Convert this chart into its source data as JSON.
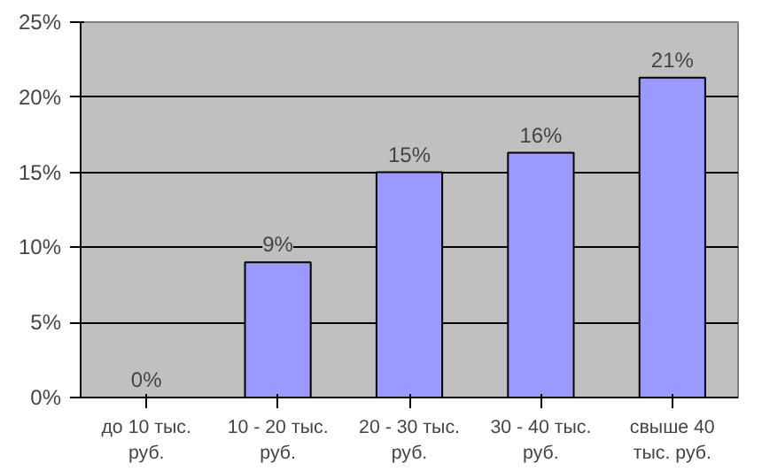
{
  "chart_data": {
    "type": "bar",
    "categories": [
      "до 10 тыс. руб.",
      "10 - 20 тыс. руб.",
      "20 - 30 тыс. руб.",
      "30 - 40 тыс. руб.",
      "свыше 40 тыс. руб."
    ],
    "values": [
      0,
      9,
      15,
      16.3,
      21.3
    ],
    "value_labels": [
      "0%",
      "9%",
      "15%",
      "16%",
      "21%"
    ],
    "color": "#9999ff",
    "ylim": [
      0,
      25
    ],
    "yticks": [
      {
        "value": 0,
        "label": "0%"
      },
      {
        "value": 5,
        "label": "5%"
      },
      {
        "value": 10,
        "label": "10%"
      },
      {
        "value": 15,
        "label": "15%"
      },
      {
        "value": 20,
        "label": "20%"
      },
      {
        "value": 25,
        "label": "25%"
      }
    ],
    "grid": "y"
  }
}
